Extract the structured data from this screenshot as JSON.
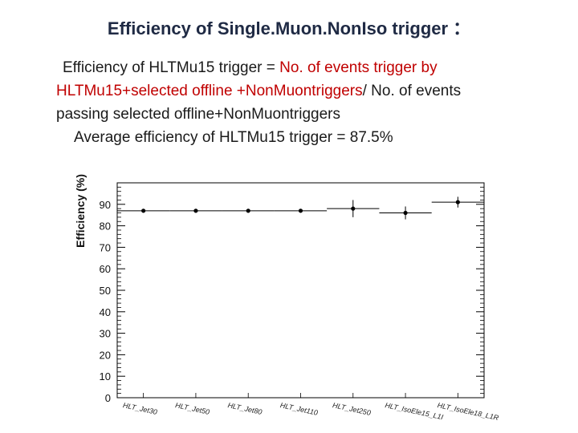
{
  "slide": {
    "title": "Efficiency of Single.Muon.NonIso trigger",
    "title_suffix": "：",
    "line1_prefix": "Efficiency of  HLTMu15 trigger =  ",
    "line1_red": "No. of events trigger by",
    "line2_red": "HLTMu15+selected offline +NonMuontriggers",
    "line2_suffix": "/ No. of events",
    "line3": "passing selected offline+NonMuontriggers",
    "line4": "Average efficiency of HLTMu15 trigger = 87.5%"
  },
  "colors": {
    "title": "#1f2a44",
    "highlight": "#c00000",
    "text": "#1a1a1a"
  },
  "chart_data": {
    "type": "scatter",
    "ylabel": "Efficiency (%)",
    "xlabel": "",
    "ylim": [
      0,
      100
    ],
    "y_ticks": [
      0,
      10,
      20,
      30,
      40,
      50,
      60,
      70,
      80,
      90
    ],
    "grid": false,
    "categories": [
      "HLT_Jet30",
      "HLT_Jet50",
      "HLT_Jet80",
      "HLT_Jet110",
      "HLT_Jet250",
      "HLT_IsoEle15_L1I",
      "HLT_IsoEle18_L1R"
    ],
    "values": [
      87,
      87,
      87,
      87,
      88,
      86,
      91
    ],
    "errors": [
      0.5,
      0.5,
      0.5,
      0.8,
      4,
      3,
      2.5
    ]
  }
}
